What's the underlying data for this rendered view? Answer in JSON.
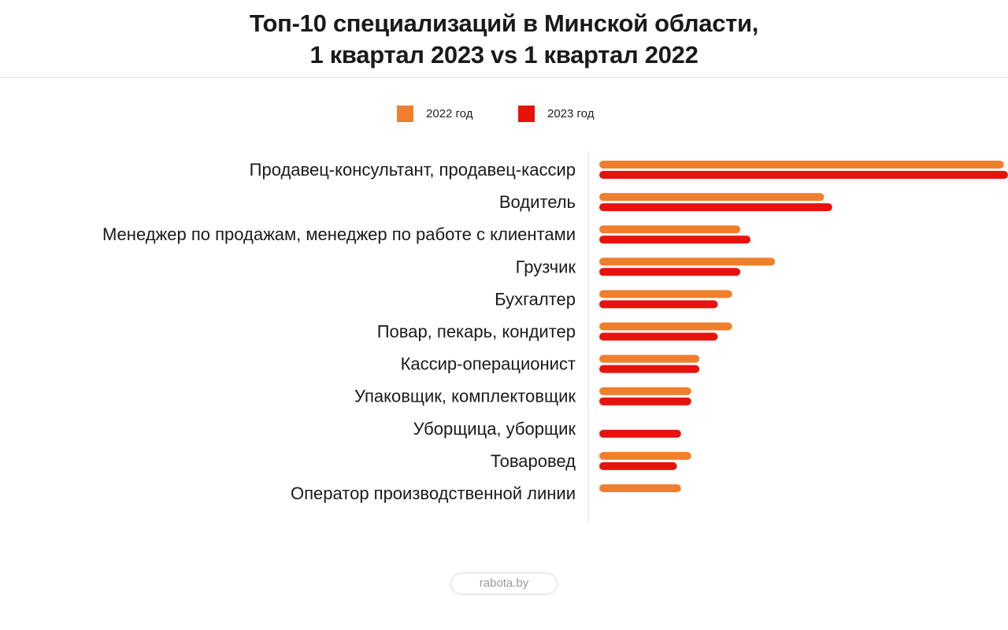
{
  "title": {
    "line1": "Топ-10 специализаций в Минской области,",
    "line2": "1 квартал 2023 vs 1 квартал 2022"
  },
  "legend": [
    {
      "label": "2022 год",
      "color": "#F07F2D"
    },
    {
      "label": "2023 год",
      "color": "#E8120C"
    }
  ],
  "footer": {
    "source": "rabota.by"
  },
  "chart_data": {
    "type": "bar",
    "orientation": "horizontal",
    "categories": [
      "Продавец-консультант, продавец-кассир",
      "Водитель",
      "Менеджер по продажам, менеджер по работе с клиентами",
      "Грузчик",
      "Бухгалтер",
      "Повар, пекарь, кондитер",
      "Кассир-операционист",
      "Упаковщик, комплектовщик",
      "Уборщица, уборщик",
      "Товаровед",
      "Оператор производственной линии"
    ],
    "series": [
      {
        "name": "2022 год",
        "color": "#F07F2D",
        "values": [
          99,
          55,
          34.5,
          43,
          32.5,
          32.5,
          24.5,
          22.5,
          null,
          22.5,
          20
        ]
      },
      {
        "name": "2023 год",
        "color": "#E8120C",
        "values": [
          100,
          57,
          37,
          34.5,
          29,
          29,
          24.5,
          22.5,
          20,
          19,
          null
        ]
      }
    ],
    "xlim": [
      0,
      100
    ],
    "grid": false,
    "legend_position": "top-center"
  }
}
